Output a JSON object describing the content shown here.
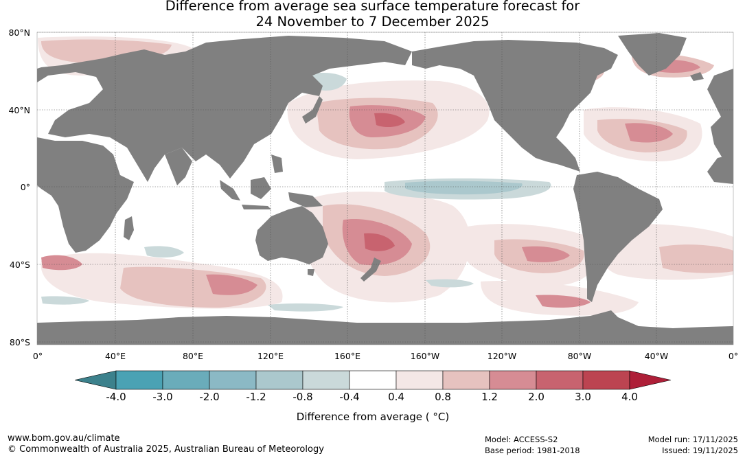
{
  "title": {
    "line1": "Difference from average sea surface temperature forecast for",
    "line2": "24 November to 7 December 2025"
  },
  "lat_labels": [
    "80°N",
    "40°N",
    "0°",
    "40°S",
    "80°S"
  ],
  "lon_labels": [
    "0°",
    "40°E",
    "80°E",
    "120°E",
    "160°E",
    "160°W",
    "120°W",
    "80°W",
    "40°W",
    "0°"
  ],
  "colorbar": {
    "ticks": [
      "-4.0",
      "-3.0",
      "-2.0",
      "-1.2",
      "-0.8",
      "-0.4",
      "0.4",
      "0.8",
      "1.2",
      "2.0",
      "3.0",
      "4.0"
    ],
    "colors": [
      "#3c818c",
      "#4aa2b4",
      "#6aacba",
      "#8bb9c5",
      "#abc8cd",
      "#cad9da",
      "#ffffff",
      "#f4e7e6",
      "#e6c2bf",
      "#d68c94",
      "#c8636f",
      "#bc4451",
      "#ae1f38"
    ],
    "label": "Difference from average ( °C)"
  },
  "footer": {
    "url": "www.bom.gov.au/climate",
    "copyright": "© Commonwealth of Australia 2025, Australian Bureau of Meteorology",
    "model": "Model: ACCESS-S2",
    "base_period": "Base period: 1981-2018",
    "model_run": "Model run: 17/11/2025",
    "issued": "Issued: 19/11/2025"
  },
  "colors": {
    "land": "#808080",
    "warm_light": "#f4e7e6",
    "warm_mid": "#e6c2bf",
    "warm_strong": "#d68c94",
    "warm_deep": "#c8636f",
    "cool_light": "#cad9da",
    "cool_mid": "#abc8cd"
  }
}
